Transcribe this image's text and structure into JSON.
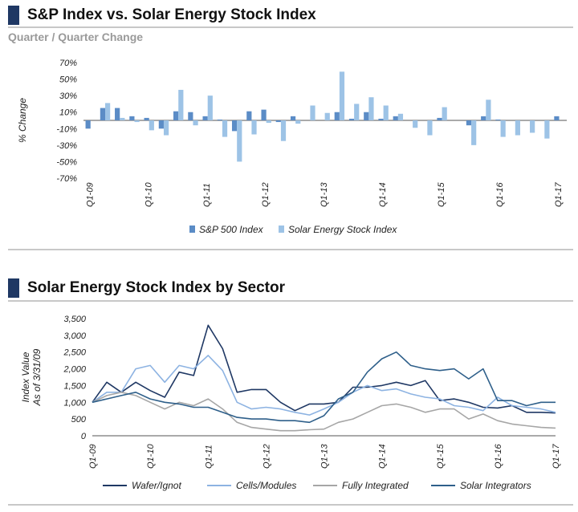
{
  "section1": {
    "title": "S&P Index vs. Solar Energy Stock Index",
    "subtitle": "Quarter / Quarter Change"
  },
  "section2": {
    "title": "Solar Energy Stock Index by Sector"
  },
  "colors": {
    "header_bar": "#1f3864",
    "sp500": "#5b8cc6",
    "solar": "#9dc3e6",
    "wafer": "#1f3864",
    "cells": "#8db3e2",
    "fully": "#a6a6a6",
    "integrators": "#2e5f8a"
  },
  "chart_data": [
    {
      "type": "bar",
      "ylabel": "% Change",
      "ylim": [
        -70,
        70
      ],
      "yticks": [
        70,
        50,
        30,
        10,
        -10,
        -30,
        -50,
        -70
      ],
      "ytick_labels": [
        "70%",
        "50%",
        "30%",
        "10%",
        "-10%",
        "-30%",
        "-50%",
        "-70%"
      ],
      "categories": [
        "Q1-09",
        "Q2-09",
        "Q3-09",
        "Q4-09",
        "Q1-10",
        "Q2-10",
        "Q3-10",
        "Q4-10",
        "Q1-11",
        "Q2-11",
        "Q3-11",
        "Q4-11",
        "Q1-12",
        "Q2-12",
        "Q3-12",
        "Q4-12",
        "Q1-13",
        "Q2-13",
        "Q3-13",
        "Q4-13",
        "Q1-14",
        "Q2-14",
        "Q3-14",
        "Q4-14",
        "Q1-15",
        "Q2-15",
        "Q3-15",
        "Q4-15",
        "Q1-16",
        "Q2-16",
        "Q3-16",
        "Q4-16",
        "Q1-17"
      ],
      "xtick_labels": [
        "Q1-09",
        "Q1-10",
        "Q1-11",
        "Q1-12",
        "Q1-13",
        "Q1-14",
        "Q1-15",
        "Q1-16",
        "Q1-17"
      ],
      "series": [
        {
          "name": "S&P 500 Index",
          "values": [
            -10,
            15,
            15,
            5,
            3,
            -10,
            11,
            10,
            5,
            1,
            -13,
            11,
            13,
            -2,
            5,
            0,
            0,
            10,
            2,
            10,
            2,
            5,
            0,
            0,
            3,
            0,
            -6,
            5,
            1,
            0,
            0,
            0,
            5
          ]
        },
        {
          "name": "Solar Energy Stock Index",
          "values": [
            0,
            21,
            3,
            -2,
            -12,
            -18,
            37,
            -6,
            30,
            -20,
            -50,
            -17,
            -3,
            -25,
            -4,
            18,
            9,
            59,
            20,
            28,
            18,
            8,
            -9,
            -18,
            16,
            0,
            -30,
            25,
            -20,
            -18,
            -15,
            -22,
            0
          ]
        }
      ]
    },
    {
      "type": "line",
      "ylabel": "Index Value As of 3/31/09",
      "ylim": [
        0,
        3500
      ],
      "yticks": [
        0,
        500,
        1000,
        1500,
        2000,
        2500,
        3000,
        3500
      ],
      "ytick_labels": [
        "0",
        "500",
        "1,000",
        "1,500",
        "2,000",
        "2,500",
        "3,000",
        "3,500"
      ],
      "categories": [
        "Q1-09",
        "Q2-09",
        "Q3-09",
        "Q4-09",
        "Q1-10",
        "Q2-10",
        "Q3-10",
        "Q4-10",
        "Q1-11",
        "Q2-11",
        "Q3-11",
        "Q4-11",
        "Q1-12",
        "Q2-12",
        "Q3-12",
        "Q4-12",
        "Q1-13",
        "Q2-13",
        "Q3-13",
        "Q4-13",
        "Q1-14",
        "Q2-14",
        "Q3-14",
        "Q4-14",
        "Q1-15",
        "Q2-15",
        "Q3-15",
        "Q4-15",
        "Q1-16",
        "Q2-16",
        "Q3-16",
        "Q4-16",
        "Q1-17"
      ],
      "xtick_labels": [
        "Q1-09",
        "Q1-10",
        "Q1-11",
        "Q1-12",
        "Q1-13",
        "Q1-14",
        "Q1-15",
        "Q1-16",
        "Q1-17"
      ],
      "series": [
        {
          "name": "Wafer/Ignot",
          "values": [
            1000,
            1600,
            1300,
            1600,
            1350,
            1150,
            1900,
            1800,
            3300,
            2600,
            1300,
            1380,
            1380,
            1000,
            750,
            950,
            950,
            1000,
            1450,
            1450,
            1500,
            1600,
            1500,
            1650,
            1050,
            1100,
            1000,
            850,
            830,
            900,
            700,
            700,
            680
          ]
        },
        {
          "name": "Cells/Modules",
          "values": [
            1000,
            1300,
            1300,
            2000,
            2100,
            1600,
            2100,
            2000,
            2400,
            1950,
            1000,
            800,
            850,
            800,
            700,
            620,
            800,
            1000,
            1300,
            1500,
            1350,
            1400,
            1250,
            1150,
            1100,
            900,
            850,
            750,
            1150,
            900,
            850,
            800,
            700
          ]
        },
        {
          "name": "Fully Integrated",
          "values": [
            1000,
            1200,
            1300,
            1200,
            1000,
            800,
            1000,
            900,
            1100,
            800,
            400,
            250,
            200,
            150,
            150,
            180,
            200,
            400,
            500,
            700,
            900,
            950,
            850,
            700,
            800,
            800,
            500,
            650,
            450,
            350,
            300,
            250,
            230
          ]
        },
        {
          "name": "Solar Integrators",
          "values": [
            1000,
            1100,
            1200,
            1300,
            1100,
            1000,
            950,
            850,
            850,
            700,
            550,
            500,
            500,
            450,
            450,
            400,
            600,
            1100,
            1300,
            1900,
            2300,
            2500,
            2100,
            2000,
            1950,
            2000,
            1700,
            2000,
            1050,
            1050,
            900,
            1000,
            1000
          ]
        }
      ]
    }
  ]
}
